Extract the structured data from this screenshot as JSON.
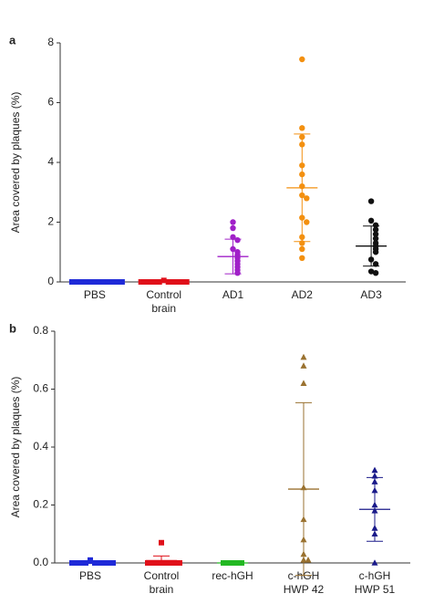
{
  "chart_data": [
    {
      "type": "dot",
      "panel": "a",
      "y_label": "Area covered by plaques (%)",
      "categories": [
        [
          "PBS"
        ],
        [
          "Control",
          "brain"
        ],
        [
          "AD1"
        ],
        [
          "AD2"
        ],
        [
          "AD3"
        ]
      ],
      "colors": [
        "#1f2ad8",
        "#e0101a",
        "#a020c8",
        "#f39010",
        "#111111"
      ],
      "markers": [
        "square",
        "square",
        "circle",
        "circle",
        "circle"
      ],
      "points": [
        [
          0,
          0,
          0,
          0,
          0,
          0,
          0,
          0,
          0,
          0,
          0,
          0
        ],
        [
          0.05,
          0,
          0,
          0,
          0,
          0,
          0,
          0,
          0,
          0,
          0
        ],
        [
          2.0,
          1.8,
          1.5,
          1.4,
          1.1,
          1.0,
          0.9,
          0.8,
          0.7,
          0.6,
          0.5,
          0.4,
          0.3
        ],
        [
          7.45,
          5.15,
          4.85,
          4.6,
          3.9,
          3.6,
          3.2,
          2.9,
          2.8,
          2.15,
          2.0,
          1.5,
          1.3,
          1.1,
          0.8
        ],
        [
          2.7,
          2.05,
          1.9,
          1.75,
          1.6,
          1.45,
          1.3,
          1.2,
          1.1,
          1.0,
          0.75,
          0.6,
          0.35,
          0.3
        ]
      ],
      "means": [
        0,
        0,
        0.85,
        3.15,
        1.2
      ],
      "sds": [
        0,
        0,
        0.58,
        1.8,
        0.67
      ],
      "ylim": [
        0,
        8
      ],
      "yticks": [
        0,
        2,
        4,
        6,
        8
      ]
    },
    {
      "type": "dot",
      "panel": "b",
      "y_label": "Area covered by plaques (%)",
      "categories": [
        [
          "PBS"
        ],
        [
          "Control",
          "brain"
        ],
        [
          "rec-hGH"
        ],
        [
          "c-hGH",
          "HWP 42"
        ],
        [
          "c-hGH",
          "HWP 51"
        ]
      ],
      "colors": [
        "#1f2ad8",
        "#e0101a",
        "#22b822",
        "#9a7230",
        "#1a1a8a"
      ],
      "markers": [
        "square",
        "square",
        "square",
        "triangle",
        "triangle"
      ],
      "points": [
        [
          0.01,
          0,
          0,
          0,
          0,
          0,
          0,
          0,
          0,
          0
        ],
        [
          0.07,
          0,
          0,
          0,
          0,
          0,
          0,
          0,
          0
        ],
        [
          0,
          0,
          0,
          0,
          0
        ],
        [
          0.71,
          0.68,
          0.62,
          0.26,
          0.15,
          0.08,
          0.03,
          0.01,
          0.01
        ],
        [
          0.32,
          0.3,
          0.28,
          0.25,
          0.2,
          0.18,
          0.12,
          0.1,
          0
        ]
      ],
      "means": [
        0.002,
        0.008,
        0,
        0.255,
        0.185
      ],
      "sds": [
        0.004,
        0.016,
        0,
        0.298,
        0.11
      ],
      "ylim": [
        0,
        0.8
      ],
      "yticks": [
        {
          "value": 0,
          "label": "0.0"
        },
        0.2,
        0.4,
        0.6,
        0.8
      ]
    }
  ]
}
